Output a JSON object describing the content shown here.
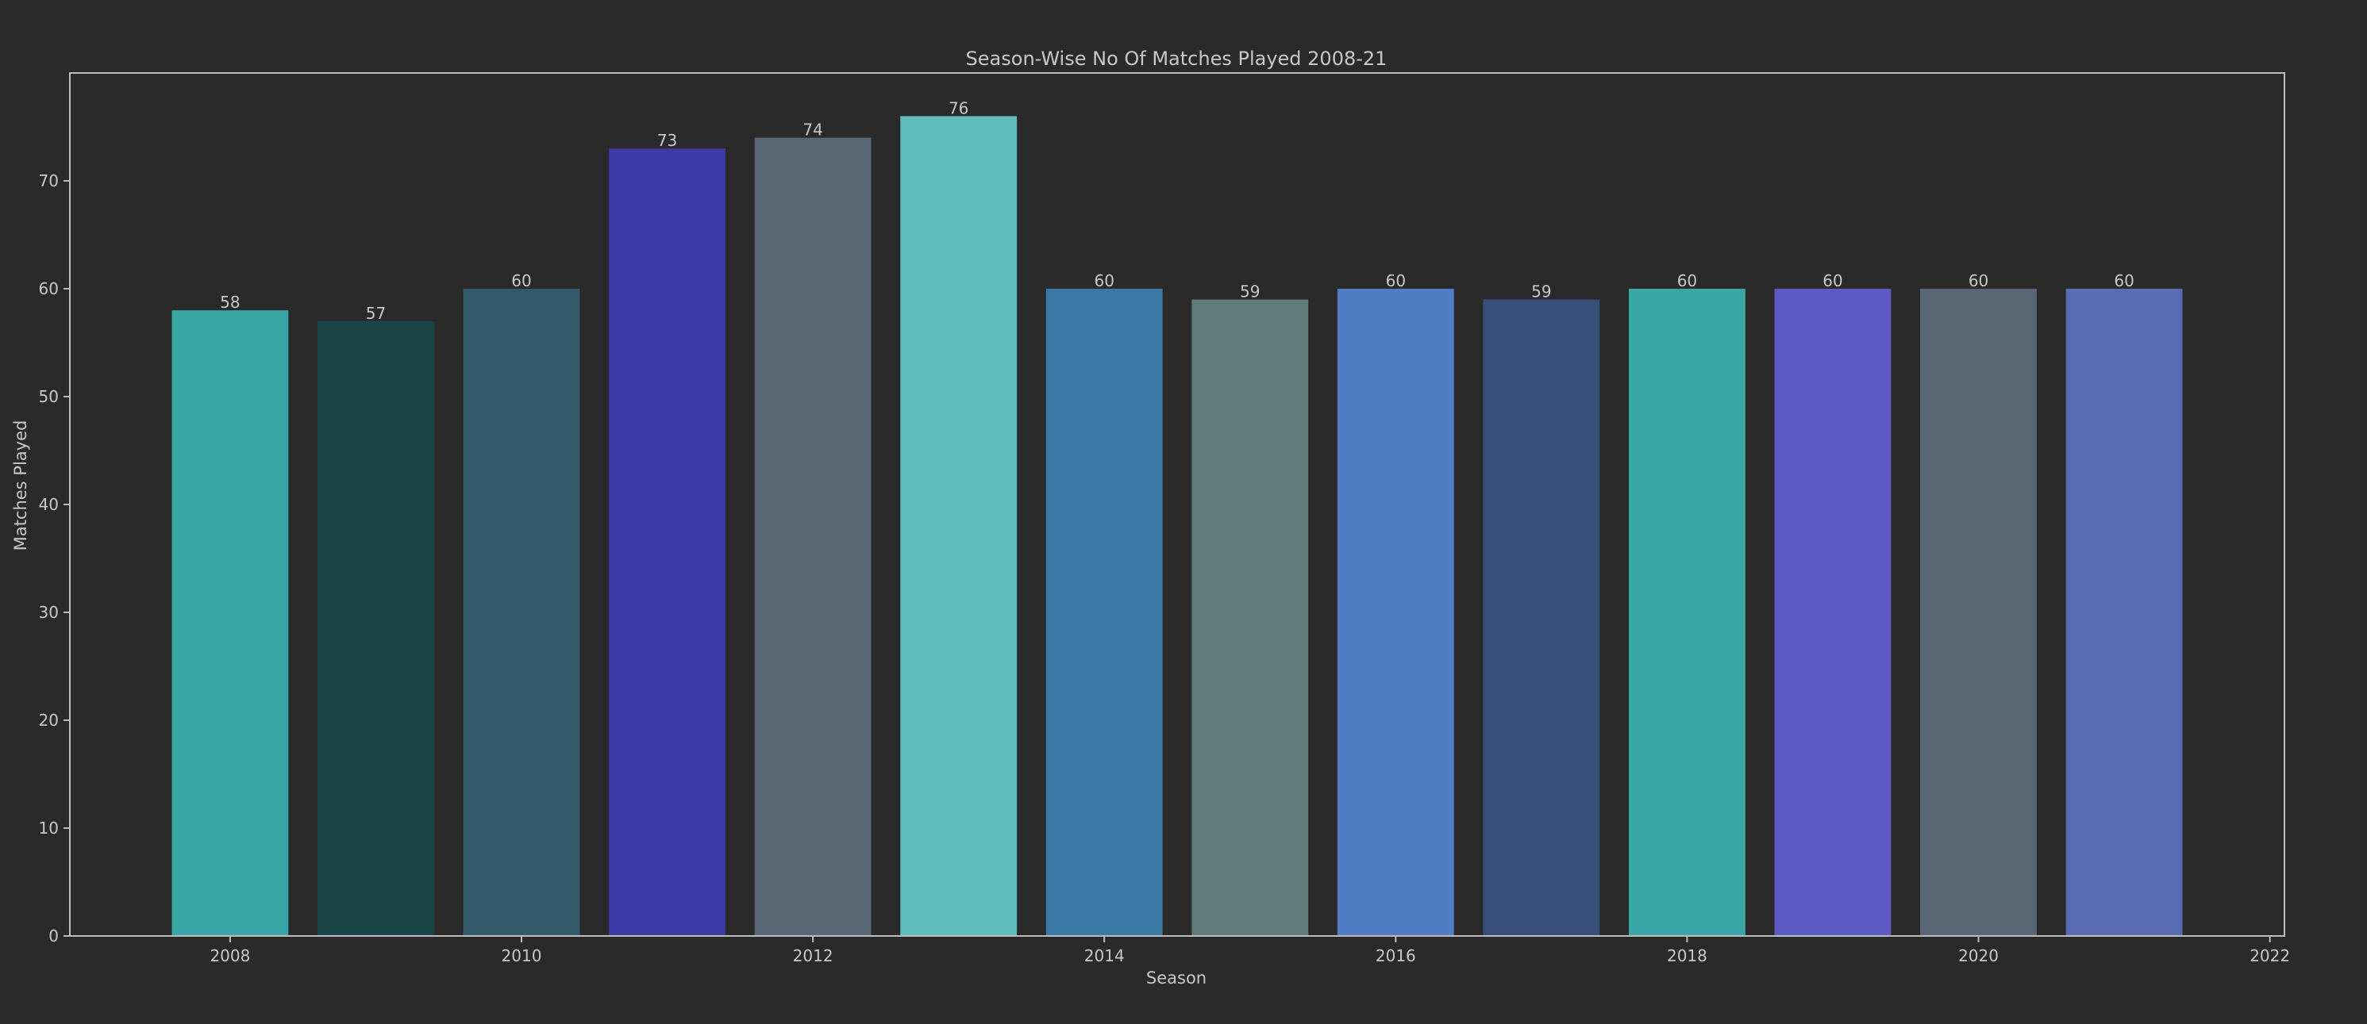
{
  "chart_data": {
    "type": "bar",
    "title": "Season-Wise No Of Matches Played 2008-21",
    "xlabel": "Season",
    "ylabel": "Matches Played",
    "x": [
      2008,
      2009,
      2010,
      2011,
      2012,
      2013,
      2014,
      2015,
      2016,
      2017,
      2018,
      2019,
      2020,
      2021
    ],
    "values": [
      58,
      57,
      60,
      73,
      74,
      76,
      60,
      59,
      60,
      59,
      60,
      60,
      60,
      60
    ],
    "data_labels": [
      "58",
      "57",
      "60",
      "73",
      "74",
      "76",
      "60",
      "59",
      "60",
      "59",
      "60",
      "60",
      "60",
      "60"
    ],
    "colors": [
      "#3ba6a6",
      "#1a4545",
      "#33596b",
      "#3c3aa6",
      "#586675",
      "#5fbdbd",
      "#3b78a6",
      "#627c7c",
      "#507dc3",
      "#384f7b",
      "#3ba6a6",
      "#5d5bc3",
      "#586675",
      "#586bb3"
    ],
    "xlim": [
      2006.9,
      2022.1
    ],
    "ylim": [
      0,
      80
    ],
    "xticks": [
      2008,
      2010,
      2012,
      2014,
      2016,
      2018,
      2020,
      2022
    ],
    "xtick_labels": [
      "2008",
      "2010",
      "2012",
      "2014",
      "2016",
      "2018",
      "2020",
      "2022"
    ],
    "yticks": [
      0,
      10,
      20,
      30,
      40,
      50,
      60,
      70
    ],
    "ytick_labels": [
      "0",
      "10",
      "20",
      "30",
      "40",
      "50",
      "60",
      "70"
    ],
    "bar_width": 0.8,
    "grid": false,
    "legend": "none",
    "background": "#2a2a2a",
    "axis_color": "#bdbdbd"
  }
}
